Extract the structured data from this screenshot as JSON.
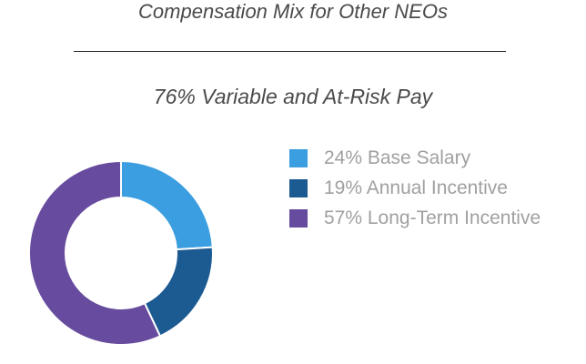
{
  "header": {
    "title": "Compensation Mix for Other NEOs",
    "subtitle": "76% Variable and At-Risk Pay"
  },
  "chart_data": {
    "type": "pie",
    "variant": "donut",
    "legend_position": "right",
    "slices": [
      {
        "label": "24% Base Salary",
        "value": 24,
        "color": "#3a9ee0"
      },
      {
        "label": "19% Annual Incentive",
        "value": 19,
        "color": "#1c5a92"
      },
      {
        "label": "57% Long-Term Incentive",
        "value": 57,
        "color": "#674b9e"
      }
    ]
  }
}
